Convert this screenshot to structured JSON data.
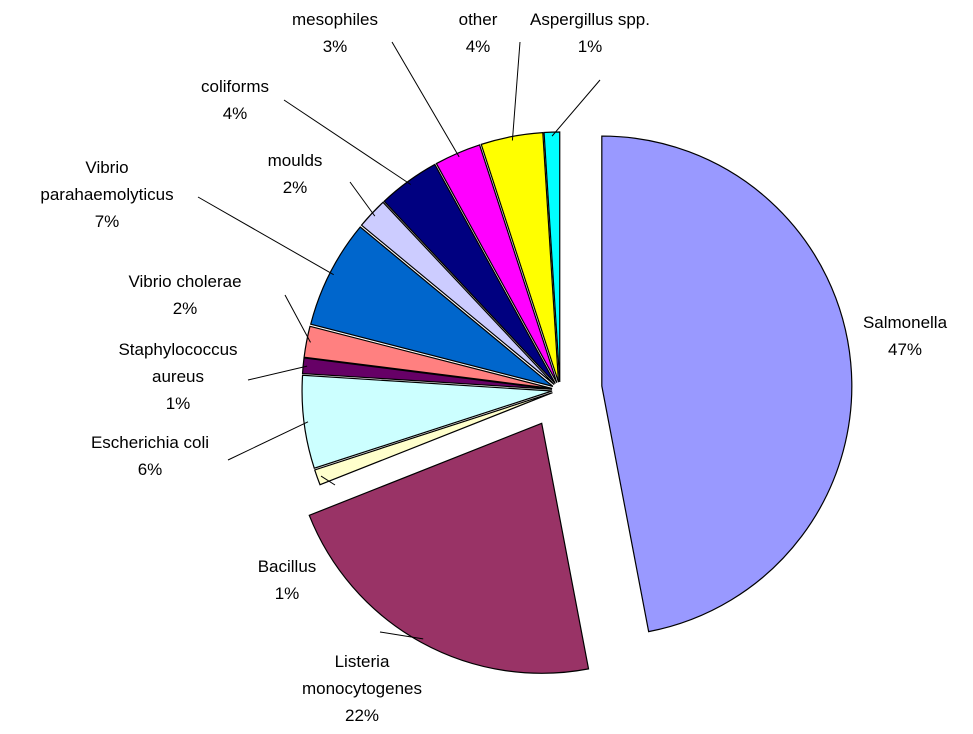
{
  "chart_data": {
    "type": "pie",
    "categories": [
      "Salmonella",
      "Listeria\nmonocytogenes",
      "Bacillus",
      "Escherichia coli",
      "Staphylococcus\naureus",
      "Vibrio cholerae",
      "Vibrio\nparahaemolyticus",
      "moulds",
      "coliforms",
      "mesophiles",
      "other",
      "Aspergillus spp."
    ],
    "values": [
      47,
      22,
      1,
      6,
      1,
      2,
      7,
      2,
      4,
      3,
      4,
      1
    ],
    "value_labels": [
      "47%",
      "22%",
      "1%",
      "6%",
      "1%",
      "2%",
      "7%",
      "2%",
      "4%",
      "3%",
      "4%",
      "1%"
    ],
    "colors": [
      "#9999ff",
      "#993366",
      "#ffffcc",
      "#ccffff",
      "#660066",
      "#ff8080",
      "#0066cc",
      "#ccccff",
      "#000080",
      "#ff00ff",
      "#ffff00",
      "#00ffff"
    ]
  }
}
